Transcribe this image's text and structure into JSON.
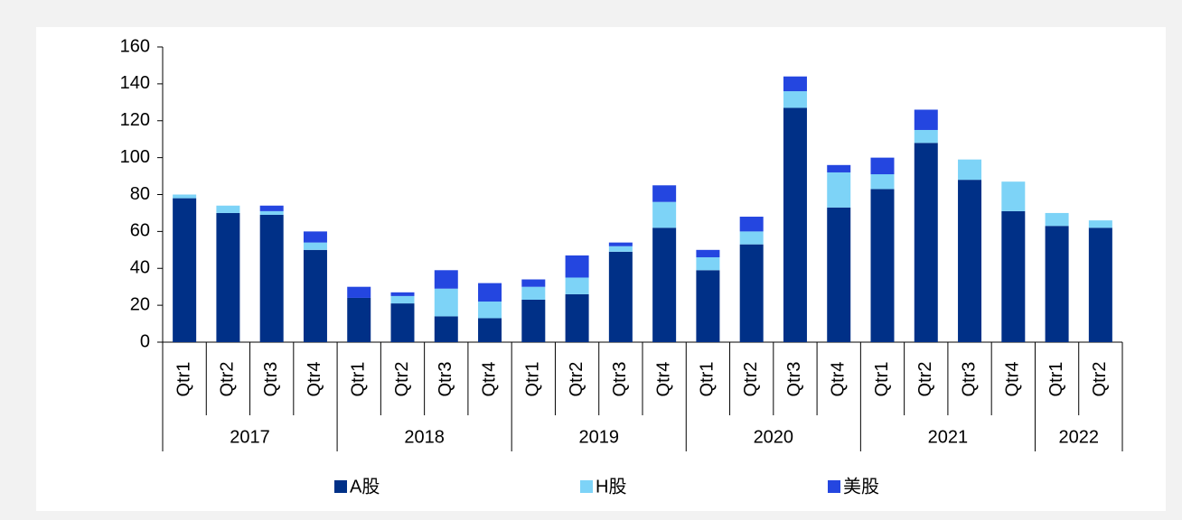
{
  "chart_data": {
    "type": "stacked_bar",
    "groups": [
      {
        "label": "2017",
        "categories": [
          "Qtr1",
          "Qtr2",
          "Qtr3",
          "Qtr4"
        ]
      },
      {
        "label": "2018",
        "categories": [
          "Qtr1",
          "Qtr2",
          "Qtr3",
          "Qtr4"
        ]
      },
      {
        "label": "2019",
        "categories": [
          "Qtr1",
          "Qtr2",
          "Qtr3",
          "Qtr4"
        ]
      },
      {
        "label": "2020",
        "categories": [
          "Qtr1",
          "Qtr2",
          "Qtr3",
          "Qtr4"
        ]
      },
      {
        "label": "2021",
        "categories": [
          "Qtr1",
          "Qtr2",
          "Qtr3",
          "Qtr4"
        ]
      },
      {
        "label": "2022",
        "categories": [
          "Qtr1",
          "Qtr2"
        ]
      }
    ],
    "series": [
      {
        "name": "A股",
        "color": "#003087",
        "values": [
          78,
          70,
          69,
          50,
          24,
          21,
          14,
          13,
          23,
          26,
          49,
          62,
          39,
          53,
          127,
          73,
          83,
          108,
          88,
          71,
          63,
          62
        ]
      },
      {
        "name": "H股",
        "color": "#7dd3f7",
        "values": [
          2,
          4,
          2,
          4,
          0,
          4,
          15,
          9,
          7,
          9,
          3,
          14,
          7,
          7,
          9,
          19,
          8,
          7,
          11,
          16,
          7,
          4
        ]
      },
      {
        "name": "美股",
        "color": "#2446e0",
        "values": [
          0,
          0,
          3,
          6,
          6,
          2,
          10,
          10,
          4,
          12,
          2,
          9,
          4,
          8,
          8,
          4,
          9,
          11,
          0,
          0,
          0,
          0
        ]
      }
    ],
    "ylim": [
      0,
      160
    ],
    "yticks": [
      0,
      20,
      40,
      60,
      80,
      100,
      120,
      140,
      160
    ]
  }
}
